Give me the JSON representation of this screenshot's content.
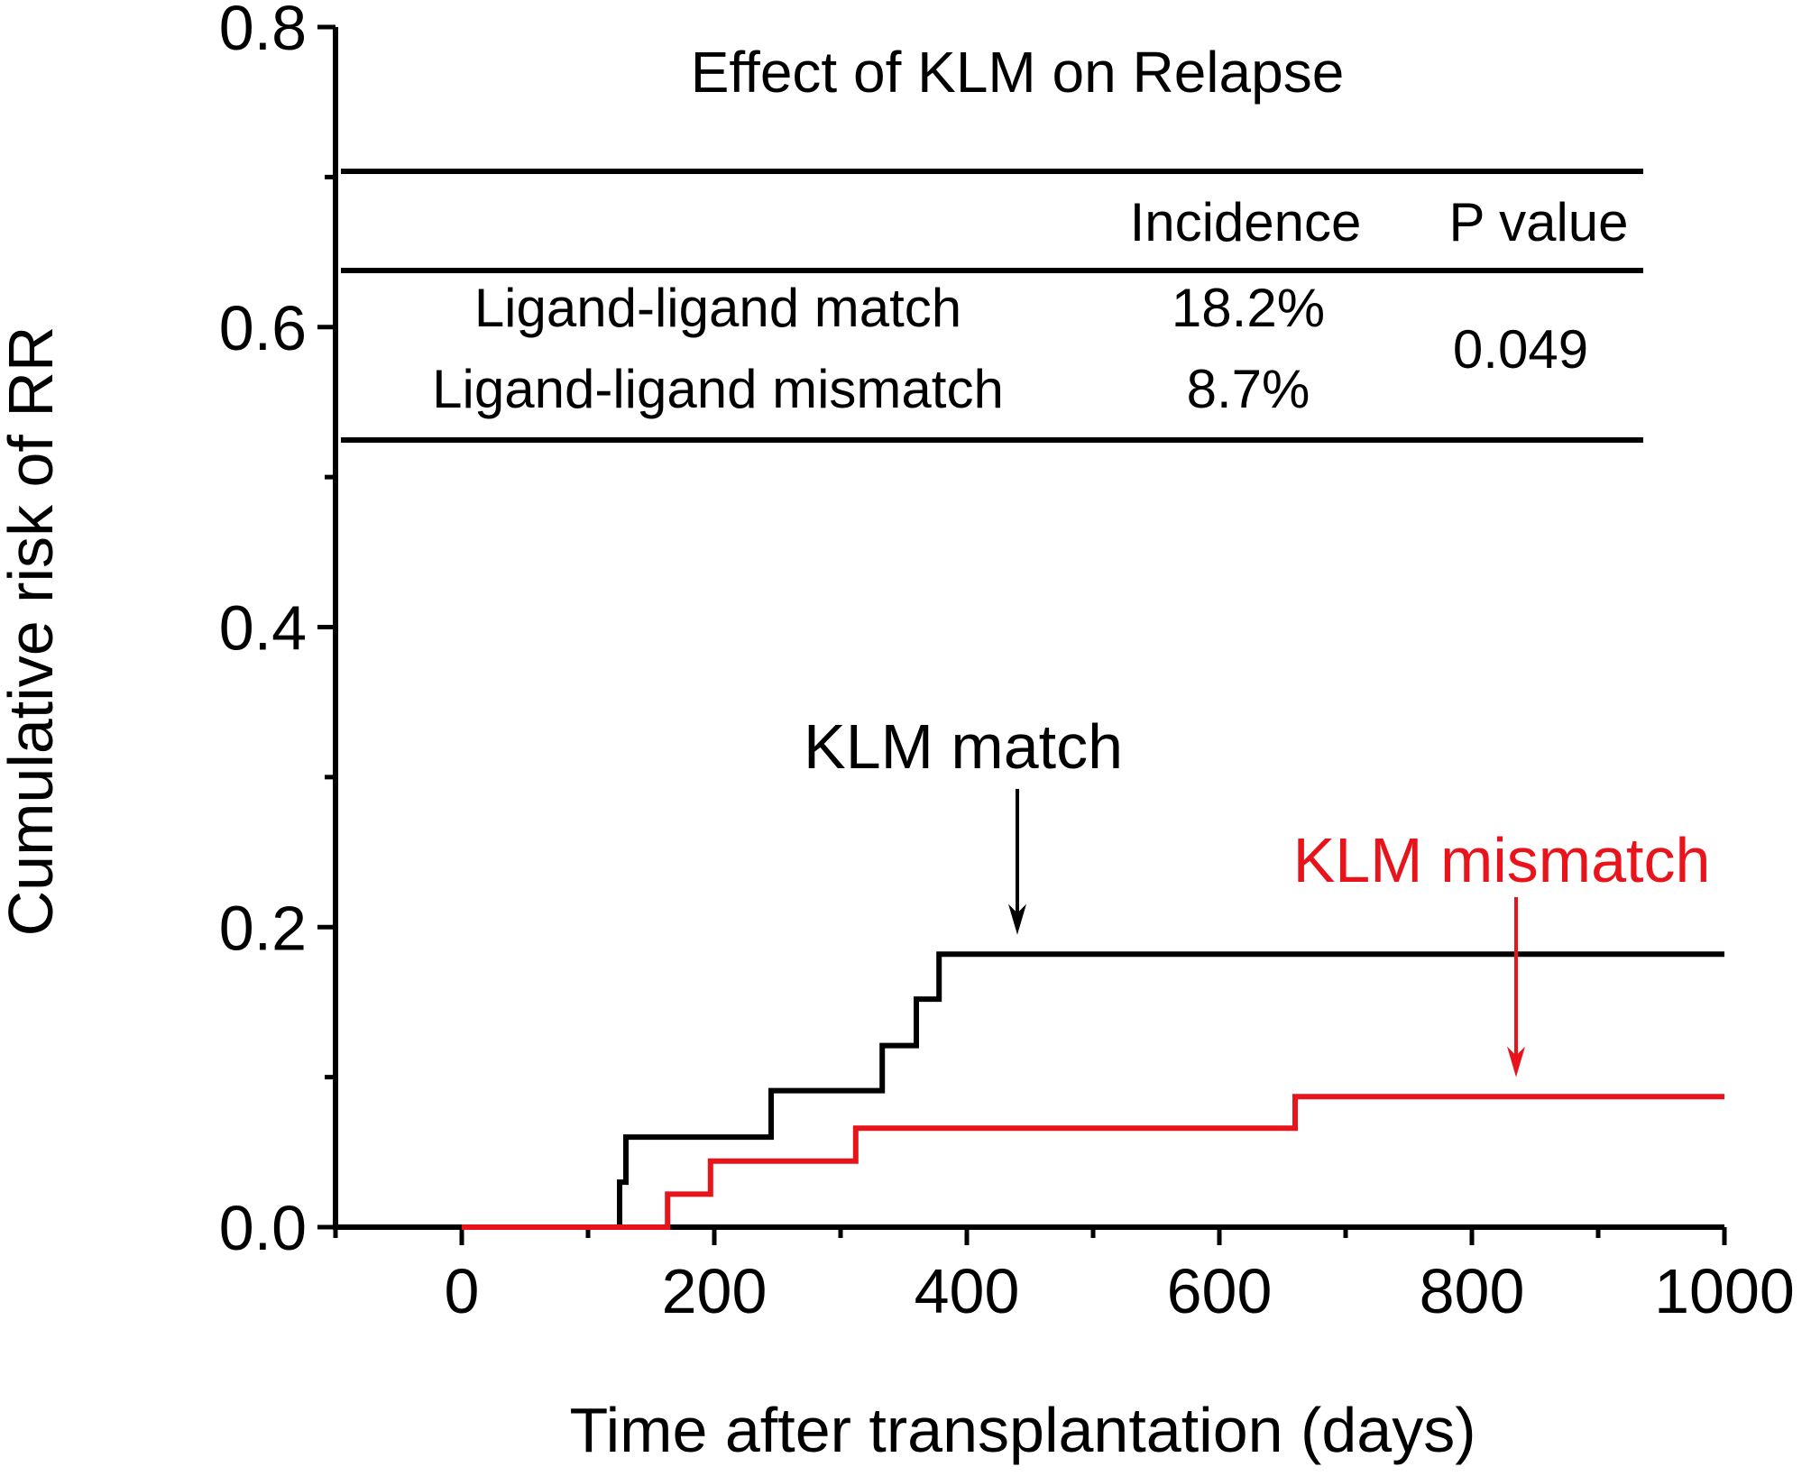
{
  "chart_data": {
    "type": "line",
    "step": true,
    "title": "Effect of KLM on Relapse",
    "xlabel": "Time after transplantation (days)",
    "ylabel": "Cumulative risk of RR",
    "xlim": [
      -100,
      1000
    ],
    "ylim": [
      0,
      0.8
    ],
    "xticks": [
      0,
      200,
      400,
      600,
      800,
      1000
    ],
    "xtick_labels": [
      "0",
      "200",
      "400",
      "600",
      "800",
      "1000"
    ],
    "yticks": [
      0.0,
      0.2,
      0.4,
      0.6,
      0.8
    ],
    "ytick_labels": [
      "0.0",
      "0.2",
      "0.4",
      "0.6",
      "0.8"
    ],
    "grid": false,
    "colors": {
      "axis": "#000000",
      "match": "#000000",
      "mismatch": "#e8141c"
    },
    "series": [
      {
        "name": "KLM match",
        "color": "#000000",
        "x": [
          0,
          125,
          130,
          245,
          333,
          360,
          378,
          1000
        ],
        "y": [
          0.0,
          0.03,
          0.06,
          0.091,
          0.121,
          0.152,
          0.182,
          0.182
        ]
      },
      {
        "name": "KLM mismatch",
        "color": "#e8141c",
        "x": [
          0,
          163,
          197,
          312,
          660,
          1000
        ],
        "y": [
          0.0,
          0.022,
          0.044,
          0.066,
          0.087,
          0.087
        ]
      }
    ],
    "annotations": [
      {
        "id": "match",
        "text": "KLM match",
        "color": "#000000",
        "arrow_target": [
          440,
          0.195
        ]
      },
      {
        "id": "mismatch",
        "text": "KLM mismatch",
        "color": "#e8141c",
        "arrow_target": [
          835,
          0.1
        ]
      }
    ],
    "table": {
      "headers": [
        "",
        "Incidence",
        "P value"
      ],
      "rows": [
        {
          "group": "Ligand-ligand match",
          "incidence": "18.2%"
        },
        {
          "group": "Ligand-ligand mismatch",
          "incidence": "8.7%"
        }
      ],
      "p_value": "0.049"
    }
  }
}
